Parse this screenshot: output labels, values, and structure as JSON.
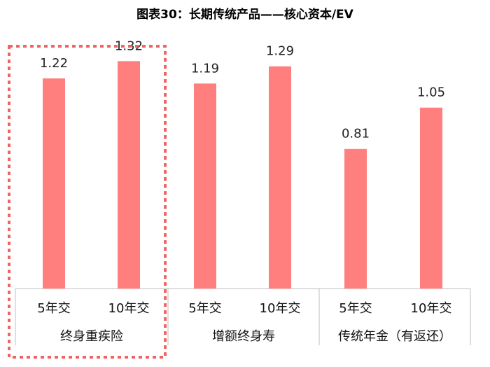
{
  "chart_data": {
    "type": "bar",
    "title": "图表30：长期传统产品——核心资本/EV",
    "groups": [
      {
        "label": "终身重疾险",
        "categories": [
          "5年交",
          "10年交"
        ],
        "values": [
          1.22,
          1.32
        ]
      },
      {
        "label": "增额终身寿",
        "categories": [
          "5年交",
          "10年交"
        ],
        "values": [
          1.19,
          1.29
        ]
      },
      {
        "label": "传统年金（有返还）",
        "categories": [
          "5年交",
          "10年交"
        ],
        "values": [
          0.81,
          1.05
        ]
      }
    ],
    "ylim": [
      0,
      1.5
    ],
    "bar_color": "#ff7f7f",
    "highlight_group": "终身重疾险",
    "highlight_color": "#f06464"
  }
}
